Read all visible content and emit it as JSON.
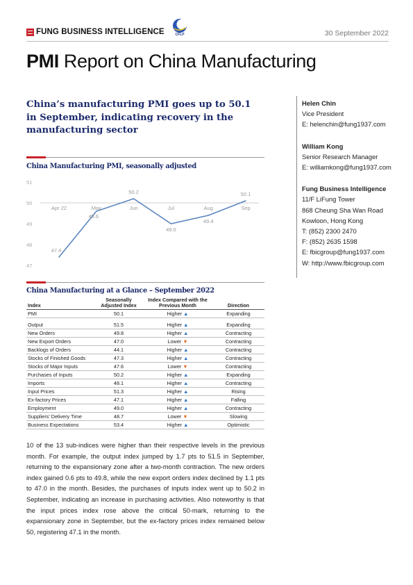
{
  "header": {
    "brand": "FUNG BUSINESS INTELLIGENCE",
    "cflp_label": "CFLP",
    "date": "30 September 2022"
  },
  "title": {
    "bold": "PMI",
    "rest": " Report on China Manufacturing"
  },
  "subhead": "China’s manufacturing PMI goes up to 50.1 in September, indicating recovery in the manufacturing sector",
  "contacts": [
    {
      "name": "Helen Chin",
      "lines": [
        "Vice President",
        "E: helenchin@fung1937.com"
      ]
    },
    {
      "name": "William Kong",
      "lines": [
        "Senior Research Manager",
        "E: williamkong@fung1937.com"
      ]
    },
    {
      "name": "Fung Business Intelligence",
      "lines": [
        "11/F LiFung Tower",
        "868 Cheung Sha Wan Road",
        "Kowloon, Hong Kong",
        "T: (852) 2300 2470",
        "F: (852) 2635 1598",
        "E: fbicgroup@fung1937.com",
        "W: http://www.fbicgroup.com"
      ]
    }
  ],
  "chart_title": "China Manufacturing PMI, seasonally adjusted",
  "chart_data": {
    "type": "line",
    "title": "China Manufacturing PMI, seasonally adjusted",
    "categories": [
      "Apr 22",
      "May",
      "Jun",
      "Jul",
      "Aug",
      "Sep"
    ],
    "series": [
      {
        "values": [
          47.4,
          49.6,
          50.2,
          49.0,
          49.4,
          50.1
        ]
      }
    ],
    "ylim": [
      47,
      51
    ],
    "yticks": [
      47,
      48,
      49,
      50,
      51
    ],
    "data_labels": [
      "47.4",
      "49.6",
      "50.2",
      "49.0",
      "49.4",
      "50.1"
    ],
    "grid": false,
    "line_color": "#5b85c0"
  },
  "table_title": "China Manufacturing at a Glance – September 2022",
  "table": {
    "headers": {
      "index": "Index",
      "value": "Seasonally Adjusted Index",
      "compare": "Index Compared with the Previous Month",
      "direction": "Direction"
    },
    "rows": [
      {
        "index": "PMI",
        "value": "50.1",
        "compare": "Higher",
        "arrow": "up",
        "direction": "Expanding"
      },
      {
        "index": "Output",
        "value": "51.5",
        "compare": "Higher",
        "arrow": "up",
        "direction": "Expanding"
      },
      {
        "index": "New Orders",
        "value": "49.8",
        "compare": "Higher",
        "arrow": "up",
        "direction": "Contracting"
      },
      {
        "index": "New Export Orders",
        "value": "47.0",
        "compare": "Lower",
        "arrow": "down",
        "direction": "Contracting"
      },
      {
        "index": "Backlogs of Orders",
        "value": "44.1",
        "compare": "Higher",
        "arrow": "up",
        "direction": "Contracting"
      },
      {
        "index": "Stocks of Finished Goods",
        "value": "47.3",
        "compare": "Higher",
        "arrow": "up",
        "direction": "Contracting"
      },
      {
        "index": "Stocks of Major Inputs",
        "value": "47.6",
        "compare": "Lower",
        "arrow": "down",
        "direction": "Contracting"
      },
      {
        "index": "Purchases of Inputs",
        "value": "50.2",
        "compare": "Higher",
        "arrow": "up",
        "direction": "Expanding"
      },
      {
        "index": "Imports",
        "value": "48.1",
        "compare": "Higher",
        "arrow": "up",
        "direction": "Contracting"
      },
      {
        "index": "Input Prices",
        "value": "51.3",
        "compare": "Higher",
        "arrow": "up",
        "direction": "Rising"
      },
      {
        "index": "Ex-factory Prices",
        "value": "47.1",
        "compare": "Higher",
        "arrow": "up",
        "direction": "Falling"
      },
      {
        "index": "Employment",
        "value": "49.0",
        "compare": "Higher",
        "arrow": "up",
        "direction": "Contracting"
      },
      {
        "index": "Suppliers’ Delivery Time",
        "value": "48.7",
        "compare": "Lower",
        "arrow": "down",
        "direction": "Slowing"
      },
      {
        "index": "Business Expectations",
        "value": "53.4",
        "compare": "Higher",
        "arrow": "up",
        "direction": "Optimistic"
      }
    ]
  },
  "paragraph": "10 of the 13 sub-indices were higher than their respective levels in the previous month. For example, the output index jumped by 1.7 pts to 51.5 in September, returning to the expansionary zone after a two-month contraction. The new orders index gained 0.6 pts to 49.8, while the new export orders index declined by 1.1 pts to 47.0 in the month. Besides, the purchases of inputs index went up to 50.2 in September, indicating an increase in purchasing activities. Also noteworthy is that the input prices index rose above the critical 50-mark, returning to the expansionary zone in September, but the ex-factory prices index remained below 50, registering 47.1 in the month.",
  "colors": {
    "brand_red": "#c8232c",
    "heading_navy": "#1b2a6b",
    "arrow_up": "#2b73c4",
    "arrow_down": "#e06a1a"
  }
}
